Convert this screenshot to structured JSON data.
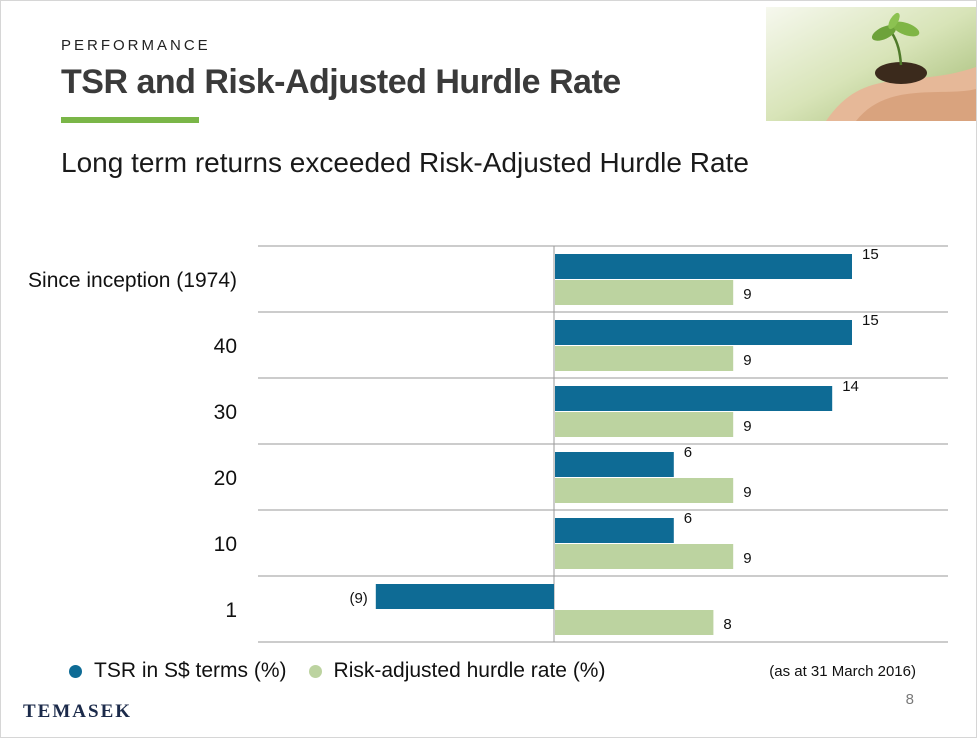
{
  "header": {
    "eyebrow": "PERFORMANCE",
    "title": "TSR and Risk-Adjusted Hurdle Rate",
    "subtitle": "Long term returns exceeded Risk-Adjusted Hurdle Rate"
  },
  "colors": {
    "tsr": "#0e6b95",
    "hurdle": "#bcd3a0",
    "accent": "#7ab648",
    "logo": "#1b2a4a"
  },
  "chart_data": {
    "type": "bar",
    "orientation": "horizontal",
    "categories": [
      "Since inception (1974)",
      "40",
      "30",
      "20",
      "10",
      "1"
    ],
    "series": [
      {
        "name": "TSR in S$ terms (%)",
        "values": [
          15,
          15,
          14,
          6,
          6,
          -9
        ],
        "labels": [
          "15",
          "15",
          "14",
          "6",
          "6",
          "(9)"
        ]
      },
      {
        "name": "Risk-adjusted hurdle rate (%)",
        "values": [
          9,
          9,
          9,
          9,
          9,
          8
        ],
        "labels": [
          "9",
          "9",
          "9",
          "9",
          "9",
          "8"
        ]
      }
    ],
    "grid": true,
    "legend": "bottom-left"
  },
  "footer": {
    "note": "(as at 31 March 2016)",
    "logo_text": "TEMASEK",
    "page_number": "8"
  }
}
